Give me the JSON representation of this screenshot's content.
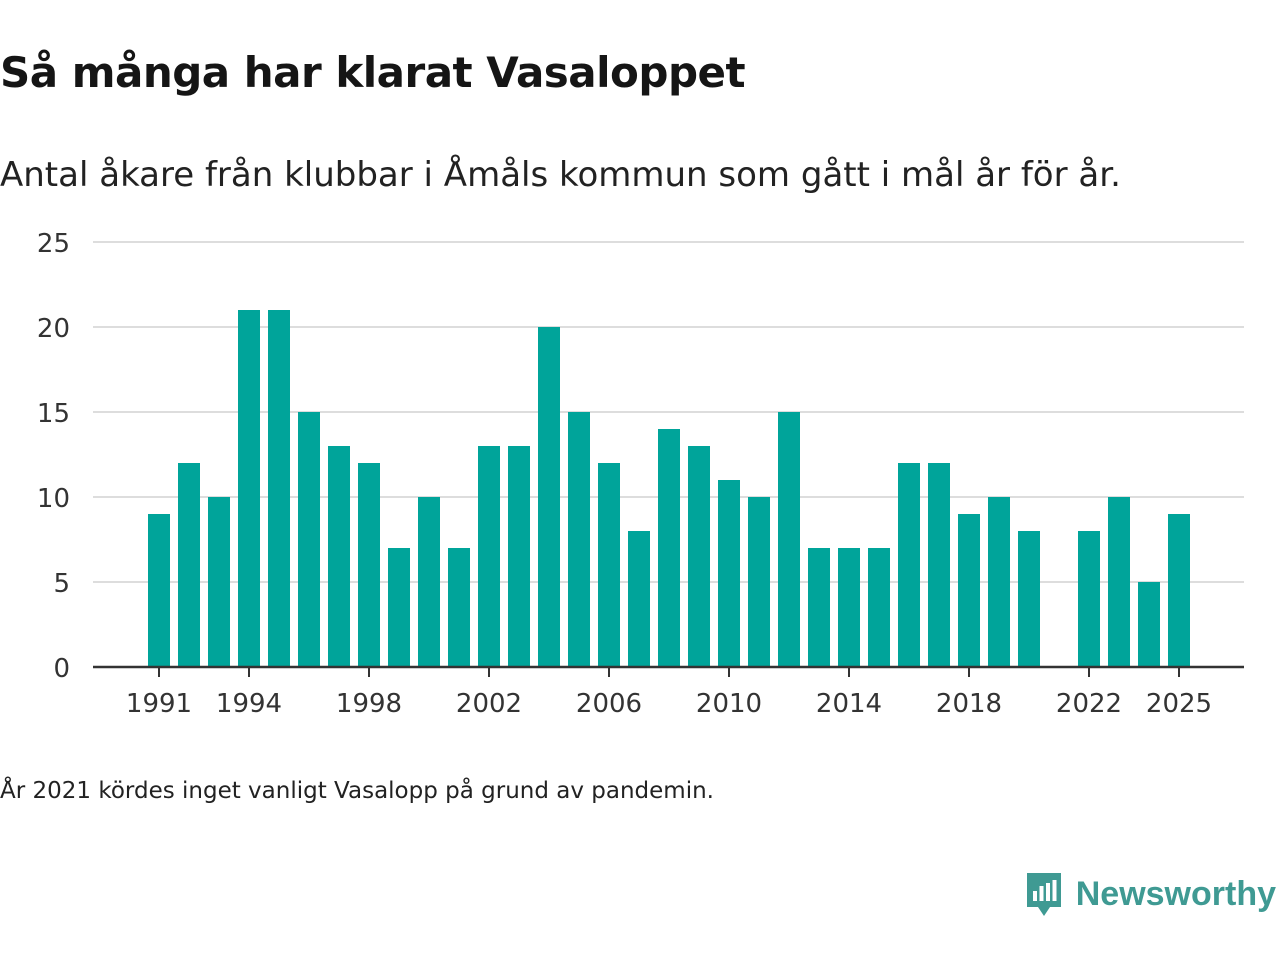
{
  "title": "Så många har klarat Vasaloppet",
  "subtitle": "Antal åkare från klubbar i Åmåls kommun som gått i mål år för år.",
  "note": "År 2021 kördes inget vanligt Vasalopp på grund av pandemin.",
  "brand": {
    "name": "Newsworthy",
    "icon": "newsworthy-logo-icon",
    "color": "#3f9a93"
  },
  "colors": {
    "bar": "#00a49a",
    "grid": "#dddddd",
    "axis": "#333333",
    "tick_text": "#333333"
  },
  "chart_data": {
    "type": "bar",
    "title": "Så många har klarat Vasaloppet",
    "xlabel": "",
    "ylabel": "",
    "categories": [
      1991,
      1992,
      1993,
      1994,
      1995,
      1996,
      1997,
      1998,
      1999,
      2000,
      2001,
      2002,
      2003,
      2004,
      2005,
      2006,
      2007,
      2008,
      2009,
      2010,
      2011,
      2012,
      2013,
      2014,
      2015,
      2016,
      2017,
      2018,
      2019,
      2020,
      2021,
      2022,
      2023,
      2024,
      2025
    ],
    "values": [
      9,
      12,
      10,
      21,
      21,
      15,
      13,
      12,
      7,
      10,
      7,
      13,
      13,
      20,
      15,
      12,
      8,
      14,
      13,
      11,
      10,
      15,
      7,
      7,
      7,
      12,
      12,
      9,
      10,
      8,
      null,
      8,
      10,
      5,
      9
    ],
    "ylim": [
      0,
      25
    ],
    "yticks": [
      0,
      5,
      10,
      15,
      20,
      25
    ],
    "xtick_labels": [
      "1991",
      "1994",
      "1998",
      "2002",
      "2006",
      "2010",
      "2014",
      "2018",
      "2022",
      "2025"
    ],
    "grid": true,
    "legend": "none"
  }
}
